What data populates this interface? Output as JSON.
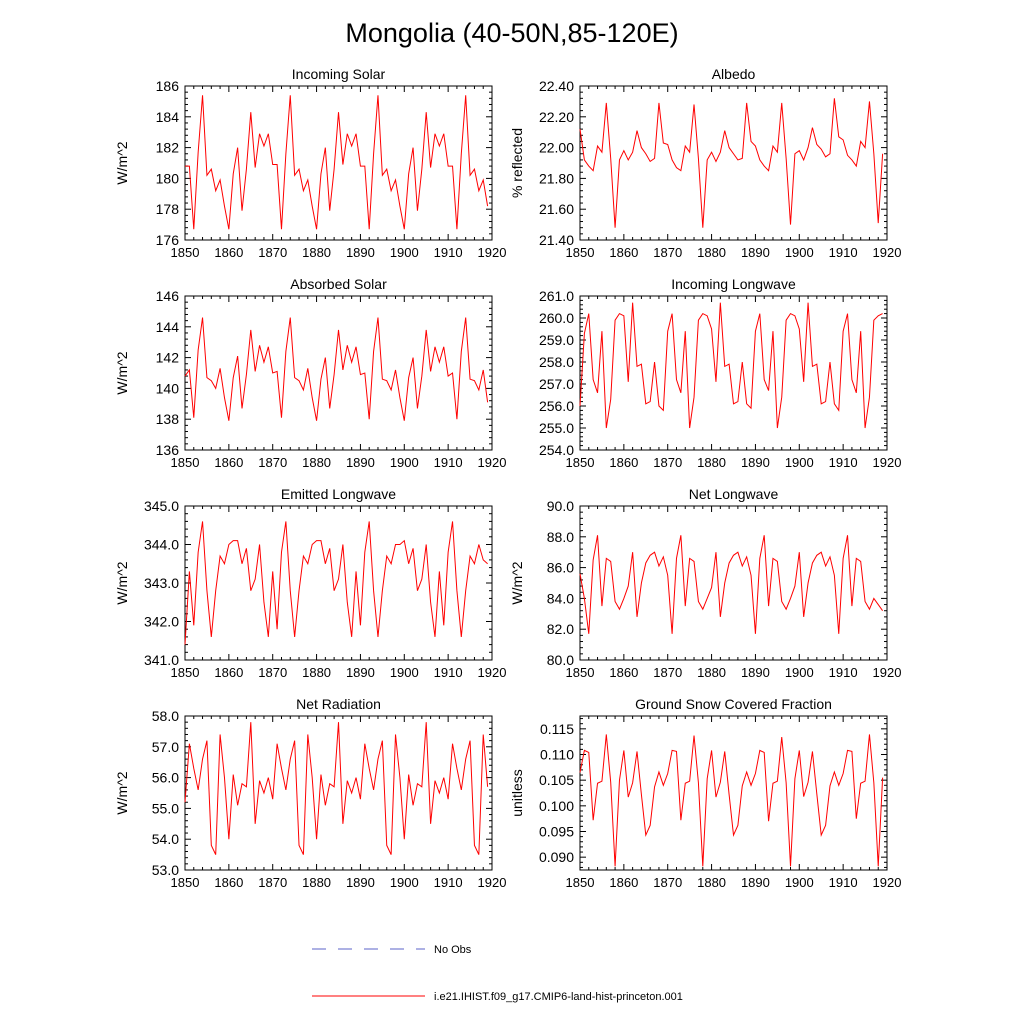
{
  "figure": {
    "title": "Mongolia (40-50N,85-120E)"
  },
  "legend": {
    "obs_label": "No Obs",
    "obs_color": "#5b63c8",
    "model_label": "i.e21.IHIST.f09_g17.CMIP6-land-hist-princeton.001",
    "model_color": "#ff0000"
  },
  "chart_data": [
    {
      "type": "line",
      "title": "Incoming Solar",
      "ylabel": "W/m^2",
      "xlim": [
        1850,
        1920
      ],
      "ylim": [
        176,
        186
      ],
      "xticks": [
        1850,
        1860,
        1870,
        1880,
        1890,
        1900,
        1910,
        1920
      ],
      "yticks": [
        "176",
        "178",
        "180",
        "182",
        "184",
        "186"
      ],
      "x_start": 1850,
      "series": [
        {
          "color": "#ff0000",
          "values": [
            180.8,
            180.8,
            176.7,
            181.7,
            185.4,
            180.2,
            180.6,
            179.2,
            179.9,
            178.2,
            176.7,
            180.3,
            182.0,
            177.9,
            180.6,
            184.3,
            180.7,
            182.9,
            182.1,
            182.9,
            180.9,
            180.9,
            176.7,
            181.6,
            185.4,
            180.2,
            180.6,
            179.2,
            179.9,
            178.2,
            176.7,
            180.3,
            182.0,
            177.9,
            180.6,
            184.3,
            180.9,
            182.9,
            182.1,
            182.9,
            180.8,
            180.8,
            176.7,
            181.6,
            185.4,
            180.2,
            180.6,
            179.2,
            179.9,
            178.2,
            176.7,
            180.3,
            182.0,
            177.9,
            180.6,
            184.3,
            180.7,
            182.9,
            182.1,
            182.9,
            180.8,
            180.8,
            176.7,
            181.6,
            185.4,
            180.2,
            180.6,
            179.2,
            179.9,
            178.2
          ]
        }
      ]
    },
    {
      "type": "line",
      "title": "Albedo",
      "ylabel": "% reflected",
      "xlim": [
        1850,
        1920
      ],
      "ylim": [
        21.4,
        22.4
      ],
      "xticks": [
        1850,
        1860,
        1870,
        1880,
        1890,
        1900,
        1910,
        1920
      ],
      "yticks": [
        "21.40",
        "21.60",
        "21.80",
        "22.00",
        "22.20",
        "22.40"
      ],
      "x_start": 1850,
      "series": [
        {
          "color": "#ff0000",
          "values": [
            22.12,
            21.92,
            21.88,
            21.85,
            22.01,
            21.97,
            22.29,
            21.93,
            21.48,
            21.92,
            21.98,
            21.92,
            21.97,
            22.11,
            22.0,
            21.96,
            21.91,
            21.93,
            22.29,
            22.03,
            22.02,
            21.92,
            21.87,
            21.85,
            22.01,
            21.97,
            22.28,
            21.93,
            21.48,
            21.92,
            21.97,
            21.91,
            21.97,
            22.11,
            22.0,
            21.96,
            21.92,
            21.93,
            22.29,
            22.04,
            22.01,
            21.92,
            21.88,
            21.85,
            22.01,
            21.97,
            22.29,
            21.93,
            21.5,
            21.96,
            21.98,
            21.92,
            22.0,
            22.13,
            22.02,
            21.99,
            21.94,
            21.96,
            22.32,
            22.07,
            22.05,
            21.95,
            21.92,
            21.88,
            22.04,
            22.0,
            22.3,
            21.96,
            21.51,
            21.96
          ]
        }
      ]
    },
    {
      "type": "line",
      "title": "Absorbed Solar",
      "ylabel": "W/m^2",
      "xlim": [
        1850,
        1920
      ],
      "ylim": [
        136,
        146
      ],
      "xticks": [
        1850,
        1860,
        1870,
        1880,
        1890,
        1900,
        1910,
        1920
      ],
      "yticks": [
        "136",
        "138",
        "140",
        "142",
        "144",
        "146"
      ],
      "x_start": 1850,
      "series": [
        {
          "color": "#ff0000",
          "values": [
            140.8,
            141.2,
            138.1,
            142.5,
            144.6,
            140.7,
            140.5,
            140.0,
            141.3,
            139.4,
            137.9,
            140.7,
            142.1,
            138.7,
            140.9,
            143.8,
            141.1,
            142.8,
            141.7,
            142.7,
            141.0,
            141.1,
            138.1,
            142.4,
            144.6,
            140.7,
            140.5,
            139.9,
            141.3,
            139.4,
            137.9,
            140.6,
            142.0,
            138.7,
            140.9,
            143.8,
            141.2,
            142.8,
            141.7,
            142.7,
            140.9,
            141.0,
            138.0,
            142.4,
            144.6,
            140.6,
            140.5,
            139.9,
            141.2,
            139.4,
            137.9,
            140.7,
            142.0,
            138.7,
            140.8,
            143.8,
            141.1,
            142.7,
            141.7,
            142.7,
            140.8,
            141.0,
            138.0,
            142.4,
            144.6,
            140.6,
            140.5,
            139.9,
            141.2,
            139.1
          ]
        }
      ]
    },
    {
      "type": "line",
      "title": "Incoming Longwave",
      "ylabel": "",
      "xlim": [
        1850,
        1920
      ],
      "ylim": [
        254,
        261
      ],
      "xticks": [
        1850,
        1860,
        1870,
        1880,
        1890,
        1900,
        1910,
        1920
      ],
      "yticks": [
        "254.0",
        "255.0",
        "256.0",
        "257.0",
        "258.0",
        "259.0",
        "260.0",
        "261.0"
      ],
      "x_start": 1850,
      "series": [
        {
          "color": "#ff0000",
          "values": [
            256.0,
            259.3,
            260.2,
            257.2,
            256.6,
            259.4,
            255.0,
            256.3,
            259.9,
            260.2,
            260.1,
            257.1,
            260.7,
            257.8,
            257.9,
            256.1,
            256.2,
            258.0,
            256.0,
            255.8,
            259.4,
            260.2,
            257.2,
            256.6,
            259.4,
            255.0,
            256.4,
            259.9,
            260.2,
            260.1,
            259.5,
            257.1,
            260.7,
            257.8,
            257.9,
            256.1,
            256.2,
            258.0,
            256.1,
            255.9,
            259.4,
            260.2,
            257.2,
            256.7,
            259.4,
            255.0,
            256.4,
            259.9,
            260.2,
            260.1,
            259.5,
            257.1,
            260.7,
            257.8,
            257.9,
            256.1,
            256.2,
            258.0,
            256.1,
            255.8,
            259.4,
            260.2,
            257.2,
            256.6,
            259.4,
            255.0,
            256.4,
            259.9,
            260.1,
            260.2
          ]
        }
      ]
    },
    {
      "type": "line",
      "title": "Emitted Longwave",
      "ylabel": "W/m^2",
      "xlim": [
        1850,
        1920
      ],
      "ylim": [
        341,
        345
      ],
      "xticks": [
        1850,
        1860,
        1870,
        1880,
        1890,
        1900,
        1910,
        1920
      ],
      "yticks": [
        "341.0",
        "342.0",
        "343.0",
        "344.0",
        "345.0"
      ],
      "x_start": 1850,
      "series": [
        {
          "color": "#ff0000",
          "values": [
            341.4,
            343.3,
            341.9,
            343.8,
            344.6,
            342.8,
            341.6,
            342.8,
            343.7,
            343.5,
            344.0,
            344.1,
            344.1,
            343.5,
            343.9,
            342.8,
            343.1,
            344.0,
            342.5,
            341.6,
            343.3,
            341.8,
            343.8,
            344.6,
            342.8,
            341.6,
            342.8,
            343.7,
            343.5,
            344.0,
            344.1,
            344.1,
            343.5,
            343.9,
            342.8,
            343.1,
            344.0,
            342.5,
            341.6,
            343.3,
            341.9,
            343.8,
            344.6,
            342.8,
            341.6,
            342.8,
            343.7,
            343.5,
            344.0,
            344.0,
            344.1,
            343.5,
            343.9,
            342.8,
            343.1,
            344.0,
            342.5,
            341.6,
            343.3,
            341.9,
            343.8,
            344.6,
            342.8,
            341.6,
            342.8,
            343.7,
            343.5,
            344.0,
            343.6,
            343.5
          ]
        }
      ]
    },
    {
      "type": "line",
      "title": "Net Longwave",
      "ylabel": "W/m^2",
      "xlim": [
        1850,
        1920
      ],
      "ylim": [
        80,
        90
      ],
      "xticks": [
        1850,
        1860,
        1870,
        1880,
        1890,
        1900,
        1910,
        1920
      ],
      "yticks": [
        "80.0",
        "82.0",
        "84.0",
        "86.0",
        "88.0",
        "90.0"
      ],
      "x_start": 1850,
      "series": [
        {
          "color": "#ff0000",
          "values": [
            85.6,
            84.0,
            81.7,
            86.5,
            88.1,
            83.5,
            86.6,
            86.4,
            83.8,
            83.3,
            84.0,
            84.8,
            87.0,
            82.8,
            85.0,
            86.3,
            86.8,
            87.0,
            86.1,
            86.7,
            85.5,
            81.7,
            86.6,
            88.1,
            83.5,
            86.6,
            86.4,
            83.8,
            83.3,
            84.0,
            84.7,
            87.0,
            82.8,
            85.0,
            86.3,
            86.8,
            87.0,
            86.1,
            86.7,
            85.5,
            81.7,
            86.6,
            88.1,
            83.5,
            86.6,
            86.4,
            83.8,
            83.3,
            84.0,
            84.8,
            87.0,
            82.8,
            85.0,
            86.3,
            86.8,
            87.0,
            86.1,
            86.7,
            85.5,
            81.7,
            86.6,
            88.1,
            83.5,
            86.6,
            86.4,
            83.8,
            83.3,
            84.0,
            83.6,
            83.2
          ]
        }
      ]
    },
    {
      "type": "line",
      "title": "Net Radiation",
      "ylabel": "W/m^2",
      "xlim": [
        1850,
        1920
      ],
      "ylim": [
        53,
        58
      ],
      "xticks": [
        1850,
        1860,
        1870,
        1880,
        1890,
        1900,
        1910,
        1920
      ],
      "yticks": [
        "53.0",
        "54.0",
        "55.0",
        "56.0",
        "57.0",
        "58.0"
      ],
      "x_start": 1850,
      "series": [
        {
          "color": "#ff0000",
          "values": [
            55.2,
            57.1,
            56.3,
            55.6,
            56.6,
            57.2,
            53.8,
            53.5,
            57.4,
            56.0,
            54.0,
            56.1,
            55.1,
            55.8,
            55.7,
            57.8,
            54.5,
            55.9,
            55.5,
            56.0,
            55.3,
            57.1,
            56.3,
            55.6,
            56.6,
            57.2,
            53.8,
            53.5,
            57.4,
            56.0,
            54.0,
            56.1,
            55.1,
            55.8,
            55.7,
            57.8,
            54.5,
            55.9,
            55.5,
            56.0,
            55.3,
            57.1,
            56.3,
            55.6,
            56.6,
            57.2,
            53.8,
            53.5,
            57.4,
            56.0,
            54.0,
            56.1,
            55.1,
            55.8,
            55.7,
            57.8,
            54.5,
            55.9,
            55.5,
            56.0,
            55.3,
            57.1,
            56.3,
            55.6,
            56.6,
            57.2,
            53.8,
            53.5,
            57.4,
            55.7
          ]
        }
      ]
    },
    {
      "type": "line",
      "title": "Ground Snow Covered Fraction",
      "ylabel": "unitless",
      "xlim": [
        1850,
        1920
      ],
      "ylim": [
        0.0875,
        0.1175
      ],
      "xticks": [
        1850,
        1860,
        1870,
        1880,
        1890,
        1900,
        1910,
        1920
      ],
      "yticks": [
        "0.090",
        "0.095",
        "0.100",
        "0.105",
        "0.110",
        "0.115"
      ],
      "x_start": 1850,
      "series": [
        {
          "color": "#ff0000",
          "values": [
            0.1065,
            0.1108,
            0.1104,
            0.0972,
            0.1044,
            0.1048,
            0.1139,
            0.1046,
            0.0882,
            0.105,
            0.1108,
            0.1017,
            0.1045,
            0.1106,
            0.1022,
            0.0943,
            0.0962,
            0.1037,
            0.1066,
            0.104,
            0.1063,
            0.1108,
            0.1106,
            0.0972,
            0.1044,
            0.1048,
            0.1137,
            0.1045,
            0.0882,
            0.1053,
            0.1108,
            0.1017,
            0.1046,
            0.1106,
            0.1022,
            0.0943,
            0.0962,
            0.1039,
            0.1066,
            0.104,
            0.1063,
            0.1108,
            0.1104,
            0.097,
            0.1044,
            0.1048,
            0.1134,
            0.1045,
            0.0882,
            0.1053,
            0.1108,
            0.1018,
            0.1046,
            0.1106,
            0.1023,
            0.0943,
            0.0962,
            0.1039,
            0.1066,
            0.104,
            0.1063,
            0.1108,
            0.1106,
            0.0975,
            0.1044,
            0.1048,
            0.1139,
            0.1045,
            0.0882,
            0.1055
          ]
        }
      ]
    }
  ]
}
